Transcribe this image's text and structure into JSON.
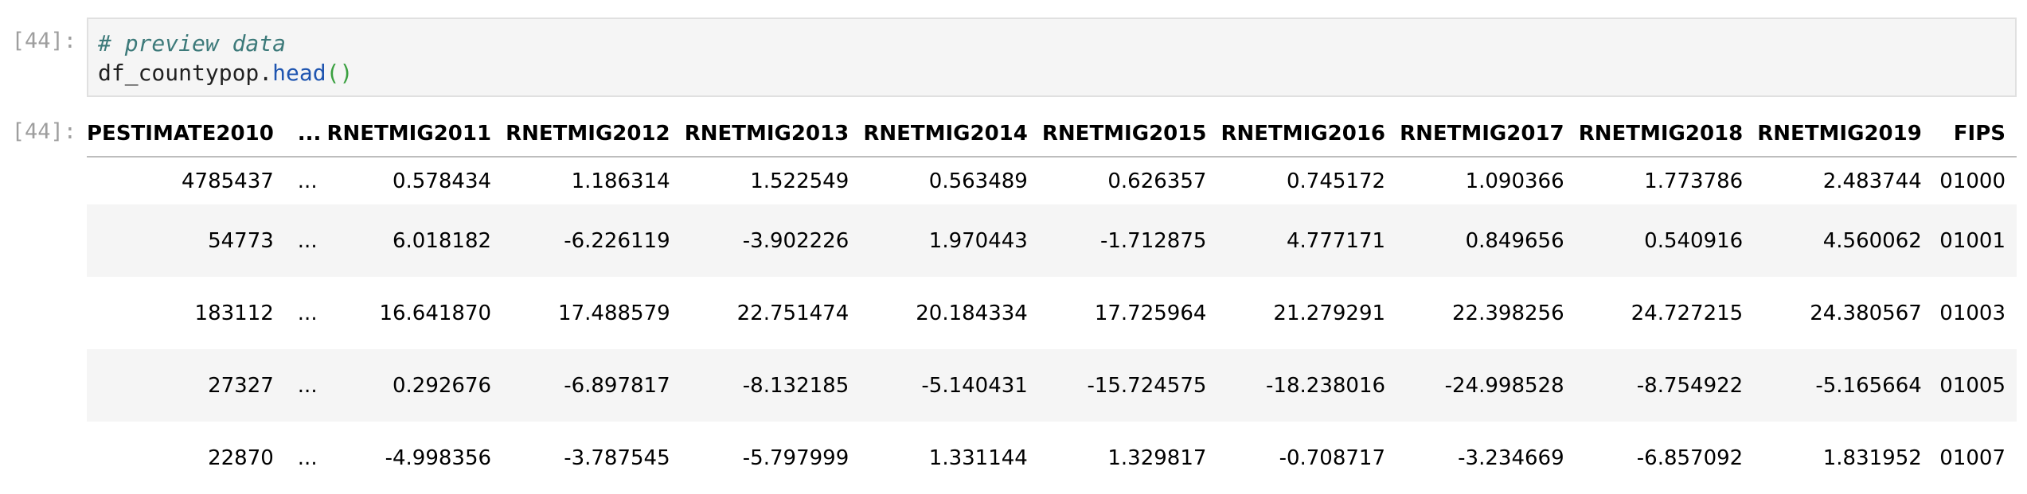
{
  "input_cell": {
    "prompt": "[44]:",
    "comment": "# preview data",
    "code_var": "df_countypop.",
    "code_func": "head",
    "code_parens": "()"
  },
  "output_cell": {
    "prompt": "[44]:",
    "table": {
      "columns": [
        "PESTIMATE2010",
        "...",
        "RNETMIG2011",
        "RNETMIG2012",
        "RNETMIG2013",
        "RNETMIG2014",
        "RNETMIG2015",
        "RNETMIG2016",
        "RNETMIG2017",
        "RNETMIG2018",
        "RNETMIG2019",
        "FIPS"
      ],
      "rows": [
        [
          "4785437",
          "...",
          "0.578434",
          "1.186314",
          "1.522549",
          "0.563489",
          "0.626357",
          "0.745172",
          "1.090366",
          "1.773786",
          "2.483744",
          "01000"
        ],
        [
          "54773",
          "...",
          "6.018182",
          "-6.226119",
          "-3.902226",
          "1.970443",
          "-1.712875",
          "4.777171",
          "0.849656",
          "0.540916",
          "4.560062",
          "01001"
        ],
        [
          "183112",
          "...",
          "16.641870",
          "17.488579",
          "22.751474",
          "20.184334",
          "17.725964",
          "21.279291",
          "22.398256",
          "24.727215",
          "24.380567",
          "01003"
        ],
        [
          "27327",
          "...",
          "0.292676",
          "-6.897817",
          "-8.132185",
          "-5.140431",
          "-15.724575",
          "-18.238016",
          "-24.998528",
          "-8.754922",
          "-5.165664",
          "01005"
        ],
        [
          "22870",
          "...",
          "-4.998356",
          "-3.787545",
          "-5.797999",
          "1.331144",
          "1.329817",
          "-0.708717",
          "-3.234669",
          "-6.857092",
          "1.831952",
          "01007"
        ]
      ]
    }
  }
}
